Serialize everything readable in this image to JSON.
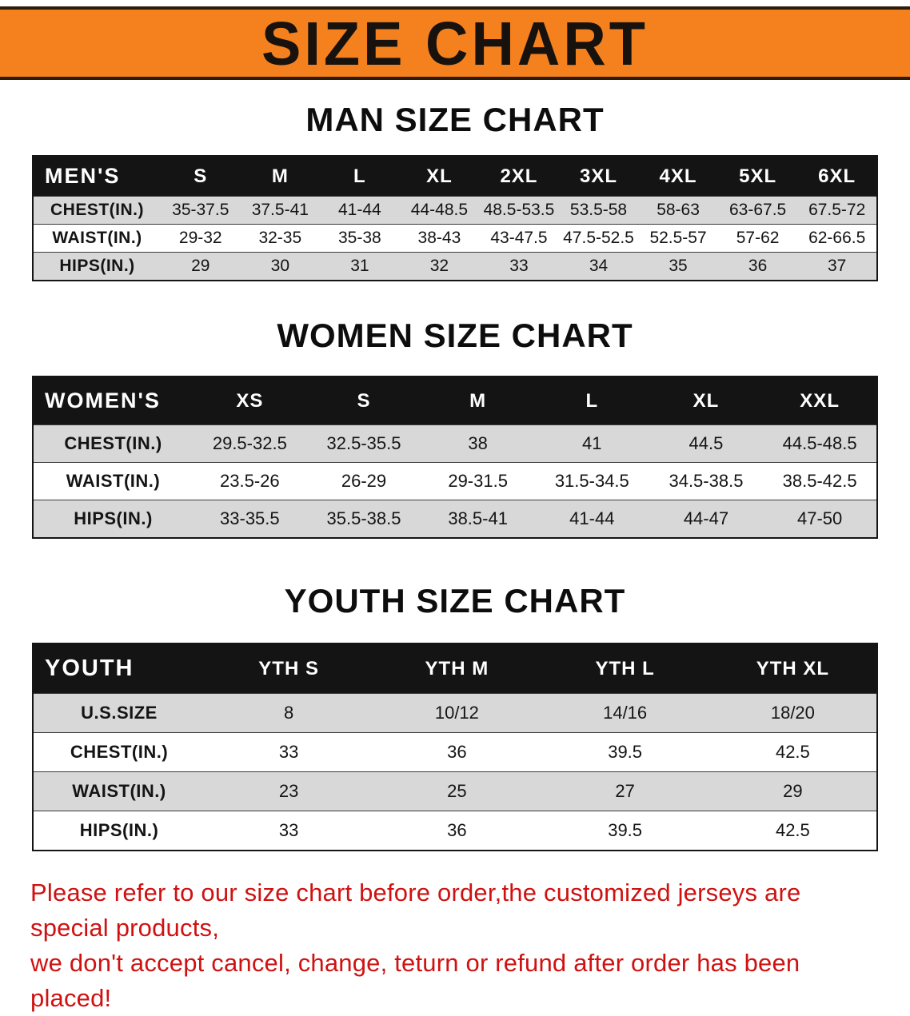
{
  "banner": {
    "title": "SIZE CHART"
  },
  "colors": {
    "banner_bg": "#f5811e",
    "banner_text": "#17120e",
    "header_bg": "#141414",
    "header_text": "#ffffff",
    "row_alt": "#d8d8d8",
    "footer_text": "#d01111"
  },
  "sections": [
    {
      "id": "men",
      "heading": "MAN SIZE CHART",
      "table": {
        "corner_label": "MEN'S",
        "columns": [
          "S",
          "M",
          "L",
          "XL",
          "2XL",
          "3XL",
          "4XL",
          "5XL",
          "6XL"
        ],
        "rows": [
          {
            "label": "CHEST(IN.)",
            "values": [
              "35-37.5",
              "37.5-41",
              "41-44",
              "44-48.5",
              "48.5-53.5",
              "53.5-58",
              "58-63",
              "63-67.5",
              "67.5-72"
            ]
          },
          {
            "label": "WAIST(IN.)",
            "values": [
              "29-32",
              "32-35",
              "35-38",
              "38-43",
              "43-47.5",
              "47.5-52.5",
              "52.5-57",
              "57-62",
              "62-66.5"
            ]
          },
          {
            "label": "HIPS(IN.)",
            "values": [
              "29",
              "30",
              "31",
              "32",
              "33",
              "34",
              "35",
              "36",
              "37"
            ]
          }
        ]
      }
    },
    {
      "id": "women",
      "heading": "WOMEN SIZE CHART",
      "table": {
        "corner_label": "WOMEN'S",
        "columns": [
          "XS",
          "S",
          "M",
          "L",
          "XL",
          "XXL"
        ],
        "rows": [
          {
            "label": "CHEST(IN.)",
            "values": [
              "29.5-32.5",
              "32.5-35.5",
              "38",
              "41",
              "44.5",
              "44.5-48.5"
            ]
          },
          {
            "label": "WAIST(IN.)",
            "values": [
              "23.5-26",
              "26-29",
              "29-31.5",
              "31.5-34.5",
              "34.5-38.5",
              "38.5-42.5"
            ]
          },
          {
            "label": "HIPS(IN.)",
            "values": [
              "33-35.5",
              "35.5-38.5",
              "38.5-41",
              "41-44",
              "44-47",
              "47-50"
            ]
          }
        ]
      }
    },
    {
      "id": "youth",
      "heading": "YOUTH SIZE CHART",
      "table": {
        "corner_label": "YOUTH",
        "columns": [
          "YTH S",
          "YTH M",
          "YTH L",
          "YTH XL"
        ],
        "rows": [
          {
            "label": "U.S.SIZE",
            "values": [
              "8",
              "10/12",
              "14/16",
              "18/20"
            ]
          },
          {
            "label": "CHEST(IN.)",
            "values": [
              "33",
              "36",
              "39.5",
              "42.5"
            ]
          },
          {
            "label": "WAIST(IN.)",
            "values": [
              "23",
              "25",
              "27",
              "29"
            ]
          },
          {
            "label": "HIPS(IN.)",
            "values": [
              "33",
              "36",
              "39.5",
              "42.5"
            ]
          }
        ]
      }
    }
  ],
  "footer": {
    "line1": "Please refer to our size chart before order,the customized jerseys are special products,",
    "line2": "we don't accept cancel, change, teturn or refund after order has been placed!"
  }
}
